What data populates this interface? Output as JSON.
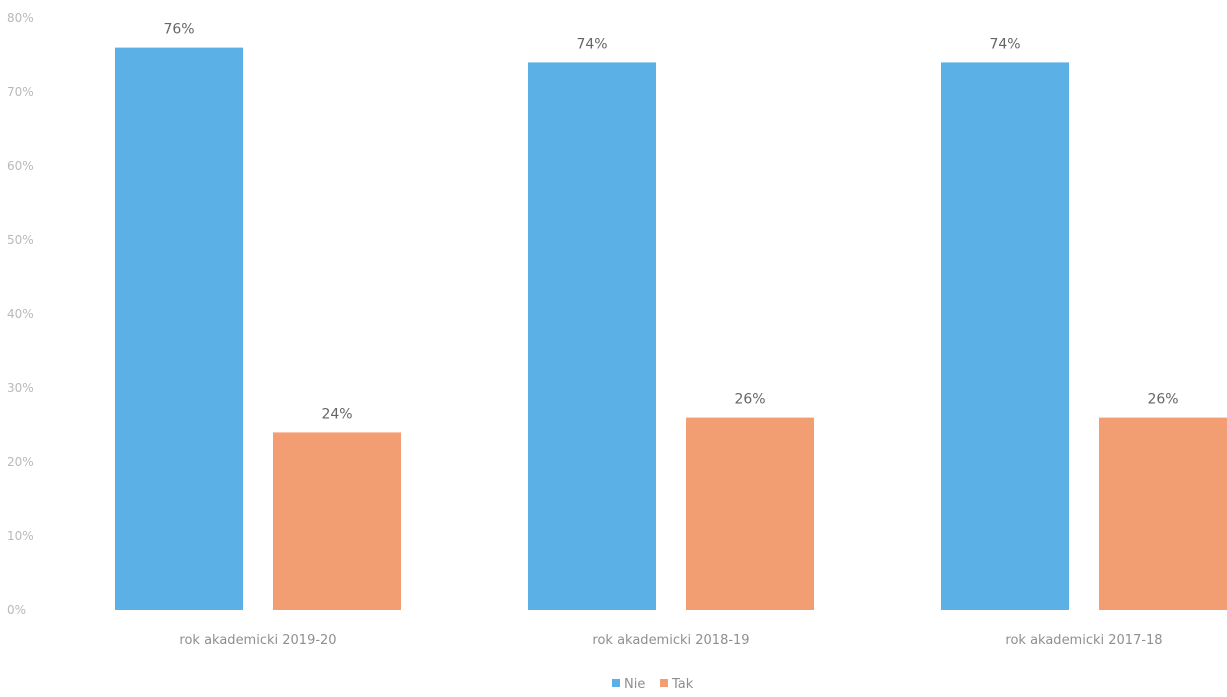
{
  "chart_data": {
    "type": "bar",
    "categories": [
      "rok akademicki 2019-20",
      "rok akademicki 2018-19",
      "rok akademicki 2017-18"
    ],
    "series": [
      {
        "name": "Nie",
        "values": [
          76,
          74,
          74
        ],
        "color": "#5bb1e6",
        "labels": [
          "76%",
          "74%",
          "74%"
        ]
      },
      {
        "name": "Tak",
        "values": [
          24,
          26,
          26
        ],
        "color": "#f29d72",
        "labels": [
          "24%",
          "26%",
          "26%"
        ]
      }
    ],
    "ylim": [
      0,
      80
    ],
    "yticks": [
      0,
      10,
      20,
      30,
      40,
      50,
      60,
      70,
      80
    ],
    "ytick_labels": [
      "0%",
      "10%",
      "20%",
      "30%",
      "40%",
      "50%",
      "60%",
      "70%",
      "80%"
    ],
    "grid": false,
    "legend_position": "bottom-center"
  }
}
